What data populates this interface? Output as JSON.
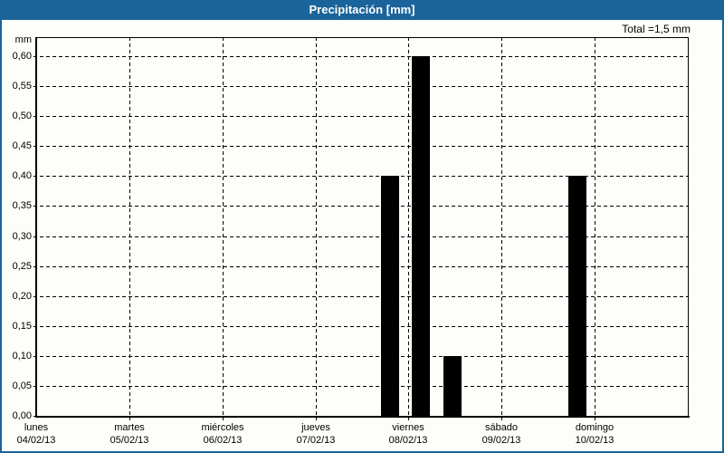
{
  "header": {
    "title": "Precipitación [mm]"
  },
  "total_label": "Total =1,5 mm",
  "colors": {
    "frame_border": "#1b649b",
    "titlebar_bg": "#1b649b",
    "titlebar_text": "#ffffff",
    "background": "#fdfdfa",
    "bar": "#000000",
    "grid": "#000000"
  },
  "chart_data": {
    "type": "bar",
    "title": "Precipitación [mm]",
    "ylabel": "mm",
    "xlabel": "",
    "grid": "dashed",
    "legend": false,
    "total_mm": 1.5,
    "y_axis": {
      "min": 0.0,
      "max": 0.6,
      "step": 0.05,
      "tick_labels": [
        "0,60",
        "0,55",
        "0,50",
        "0,45",
        "0,40",
        "0,35",
        "0,30",
        "0,25",
        "0,20",
        "0,15",
        "0,10",
        "0,05",
        "0,00"
      ]
    },
    "x_axis": {
      "day_names": [
        "lunes",
        "martes",
        "miércoles",
        "jueves",
        "viernes",
        "sábado",
        "domingo"
      ],
      "dates": [
        "04/02/13",
        "05/02/13",
        "06/02/13",
        "07/02/13",
        "08/02/13",
        "09/02/13",
        "10/02/13"
      ]
    },
    "bars": [
      {
        "pos_days": 3.8,
        "value_mm": 0.4
      },
      {
        "pos_days": 4.13,
        "value_mm": 0.6
      },
      {
        "pos_days": 4.47,
        "value_mm": 0.1
      },
      {
        "pos_days": 5.81,
        "value_mm": 0.4
      }
    ]
  }
}
